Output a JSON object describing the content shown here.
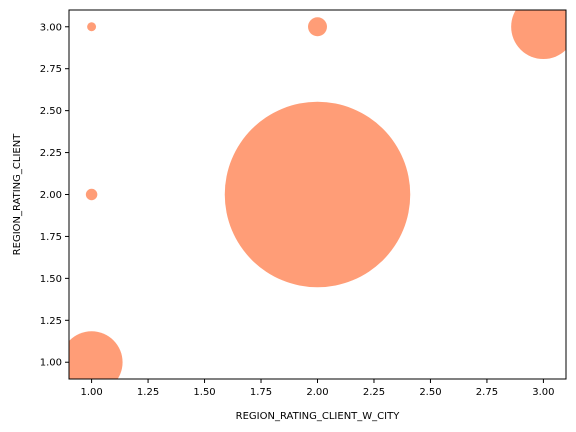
{
  "chart_data": {
    "type": "scatter",
    "title": "",
    "xlabel": "REGION_RATING_CLIENT_W_CITY",
    "ylabel": "REGION_RATING_CLIENT",
    "xlim": [
      0.9,
      3.1
    ],
    "ylim": [
      0.9,
      3.1
    ],
    "grid": false,
    "x_ticks": [
      "1.00",
      "1.25",
      "1.50",
      "1.75",
      "2.00",
      "2.25",
      "2.50",
      "2.75",
      "3.00"
    ],
    "y_ticks": [
      "1.00",
      "1.25",
      "1.50",
      "1.75",
      "2.00",
      "2.25",
      "2.50",
      "2.75",
      "3.00"
    ],
    "marker_color": "#ff8c5f",
    "marker_alpha": 0.85,
    "points": [
      {
        "x": 1,
        "y": 1,
        "size": 960
      },
      {
        "x": 1,
        "y": 2,
        "size": 33
      },
      {
        "x": 1,
        "y": 3,
        "size": 20
      },
      {
        "x": 2,
        "y": 2,
        "size": 8600
      },
      {
        "x": 2,
        "y": 3,
        "size": 90
      },
      {
        "x": 3,
        "y": 3,
        "size": 1040
      }
    ]
  }
}
